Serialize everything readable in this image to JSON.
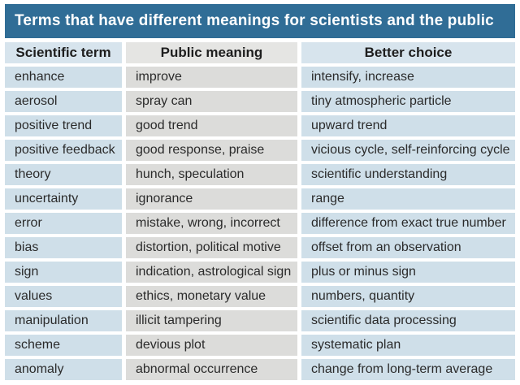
{
  "title": "Terms that have different meanings for scientists and the public",
  "table": {
    "columns": [
      "Scientific term",
      "Public meaning",
      "Better choice"
    ],
    "rows": [
      [
        "enhance",
        "improve",
        "intensify, increase"
      ],
      [
        "aerosol",
        "spray can",
        "tiny atmospheric particle"
      ],
      [
        "positive trend",
        "good trend",
        "upward trend"
      ],
      [
        "positive feedback",
        "good response, praise",
        "vicious cycle, self-reinforcing cycle"
      ],
      [
        "theory",
        "hunch, speculation",
        "scientific understanding"
      ],
      [
        "uncertainty",
        "ignorance",
        "range"
      ],
      [
        "error",
        "mistake, wrong, incorrect",
        "difference from exact true number"
      ],
      [
        "bias",
        "distortion, political motive",
        "offset from an observation"
      ],
      [
        "sign",
        "indication, astrological sign",
        "plus or minus sign"
      ],
      [
        "values",
        "ethics, monetary value",
        "numbers, quantity"
      ],
      [
        "manipulation",
        "illicit tampering",
        "scientific data processing"
      ],
      [
        "scheme",
        "devious plot",
        "systematic plan"
      ],
      [
        "anomaly",
        "abnormal occurrence",
        "change from long-term average"
      ]
    ]
  },
  "colors": {
    "title_bg": "#306d96",
    "title_text": "#ffffff",
    "column_blue": "#cfdfe9",
    "column_gray": "#dcdcda",
    "header_blue": "#d7e4ed",
    "header_gray": "#e5e5e3",
    "cell_text": "#2b2b2b",
    "background": "#ffffff"
  },
  "chart_data": {
    "type": "table",
    "title": "Terms that have different meanings for scientists and the public",
    "columns": [
      "Scientific term",
      "Public meaning",
      "Better choice"
    ],
    "rows": [
      [
        "enhance",
        "improve",
        "intensify, increase"
      ],
      [
        "aerosol",
        "spray can",
        "tiny atmospheric particle"
      ],
      [
        "positive trend",
        "good trend",
        "upward trend"
      ],
      [
        "positive feedback",
        "good response, praise",
        "vicious cycle, self-reinforcing cycle"
      ],
      [
        "theory",
        "hunch, speculation",
        "scientific understanding"
      ],
      [
        "uncertainty",
        "ignorance",
        "range"
      ],
      [
        "error",
        "mistake, wrong, incorrect",
        "difference from exact true number"
      ],
      [
        "bias",
        "distortion, political motive",
        "offset from an observation"
      ],
      [
        "sign",
        "indication, astrological sign",
        "plus or minus sign"
      ],
      [
        "values",
        "ethics, monetary value",
        "numbers, quantity"
      ],
      [
        "manipulation",
        "illicit tampering",
        "scientific data processing"
      ],
      [
        "scheme",
        "devious plot",
        "systematic plan"
      ],
      [
        "anomaly",
        "abnormal occurrence",
        "change from long-term average"
      ]
    ],
    "layout_hints": {
      "column_1_bg": "light-blue",
      "column_2_bg": "light-gray",
      "column_3_bg": "light-blue",
      "header_alignment": "center",
      "cell_alignment": "left"
    }
  }
}
